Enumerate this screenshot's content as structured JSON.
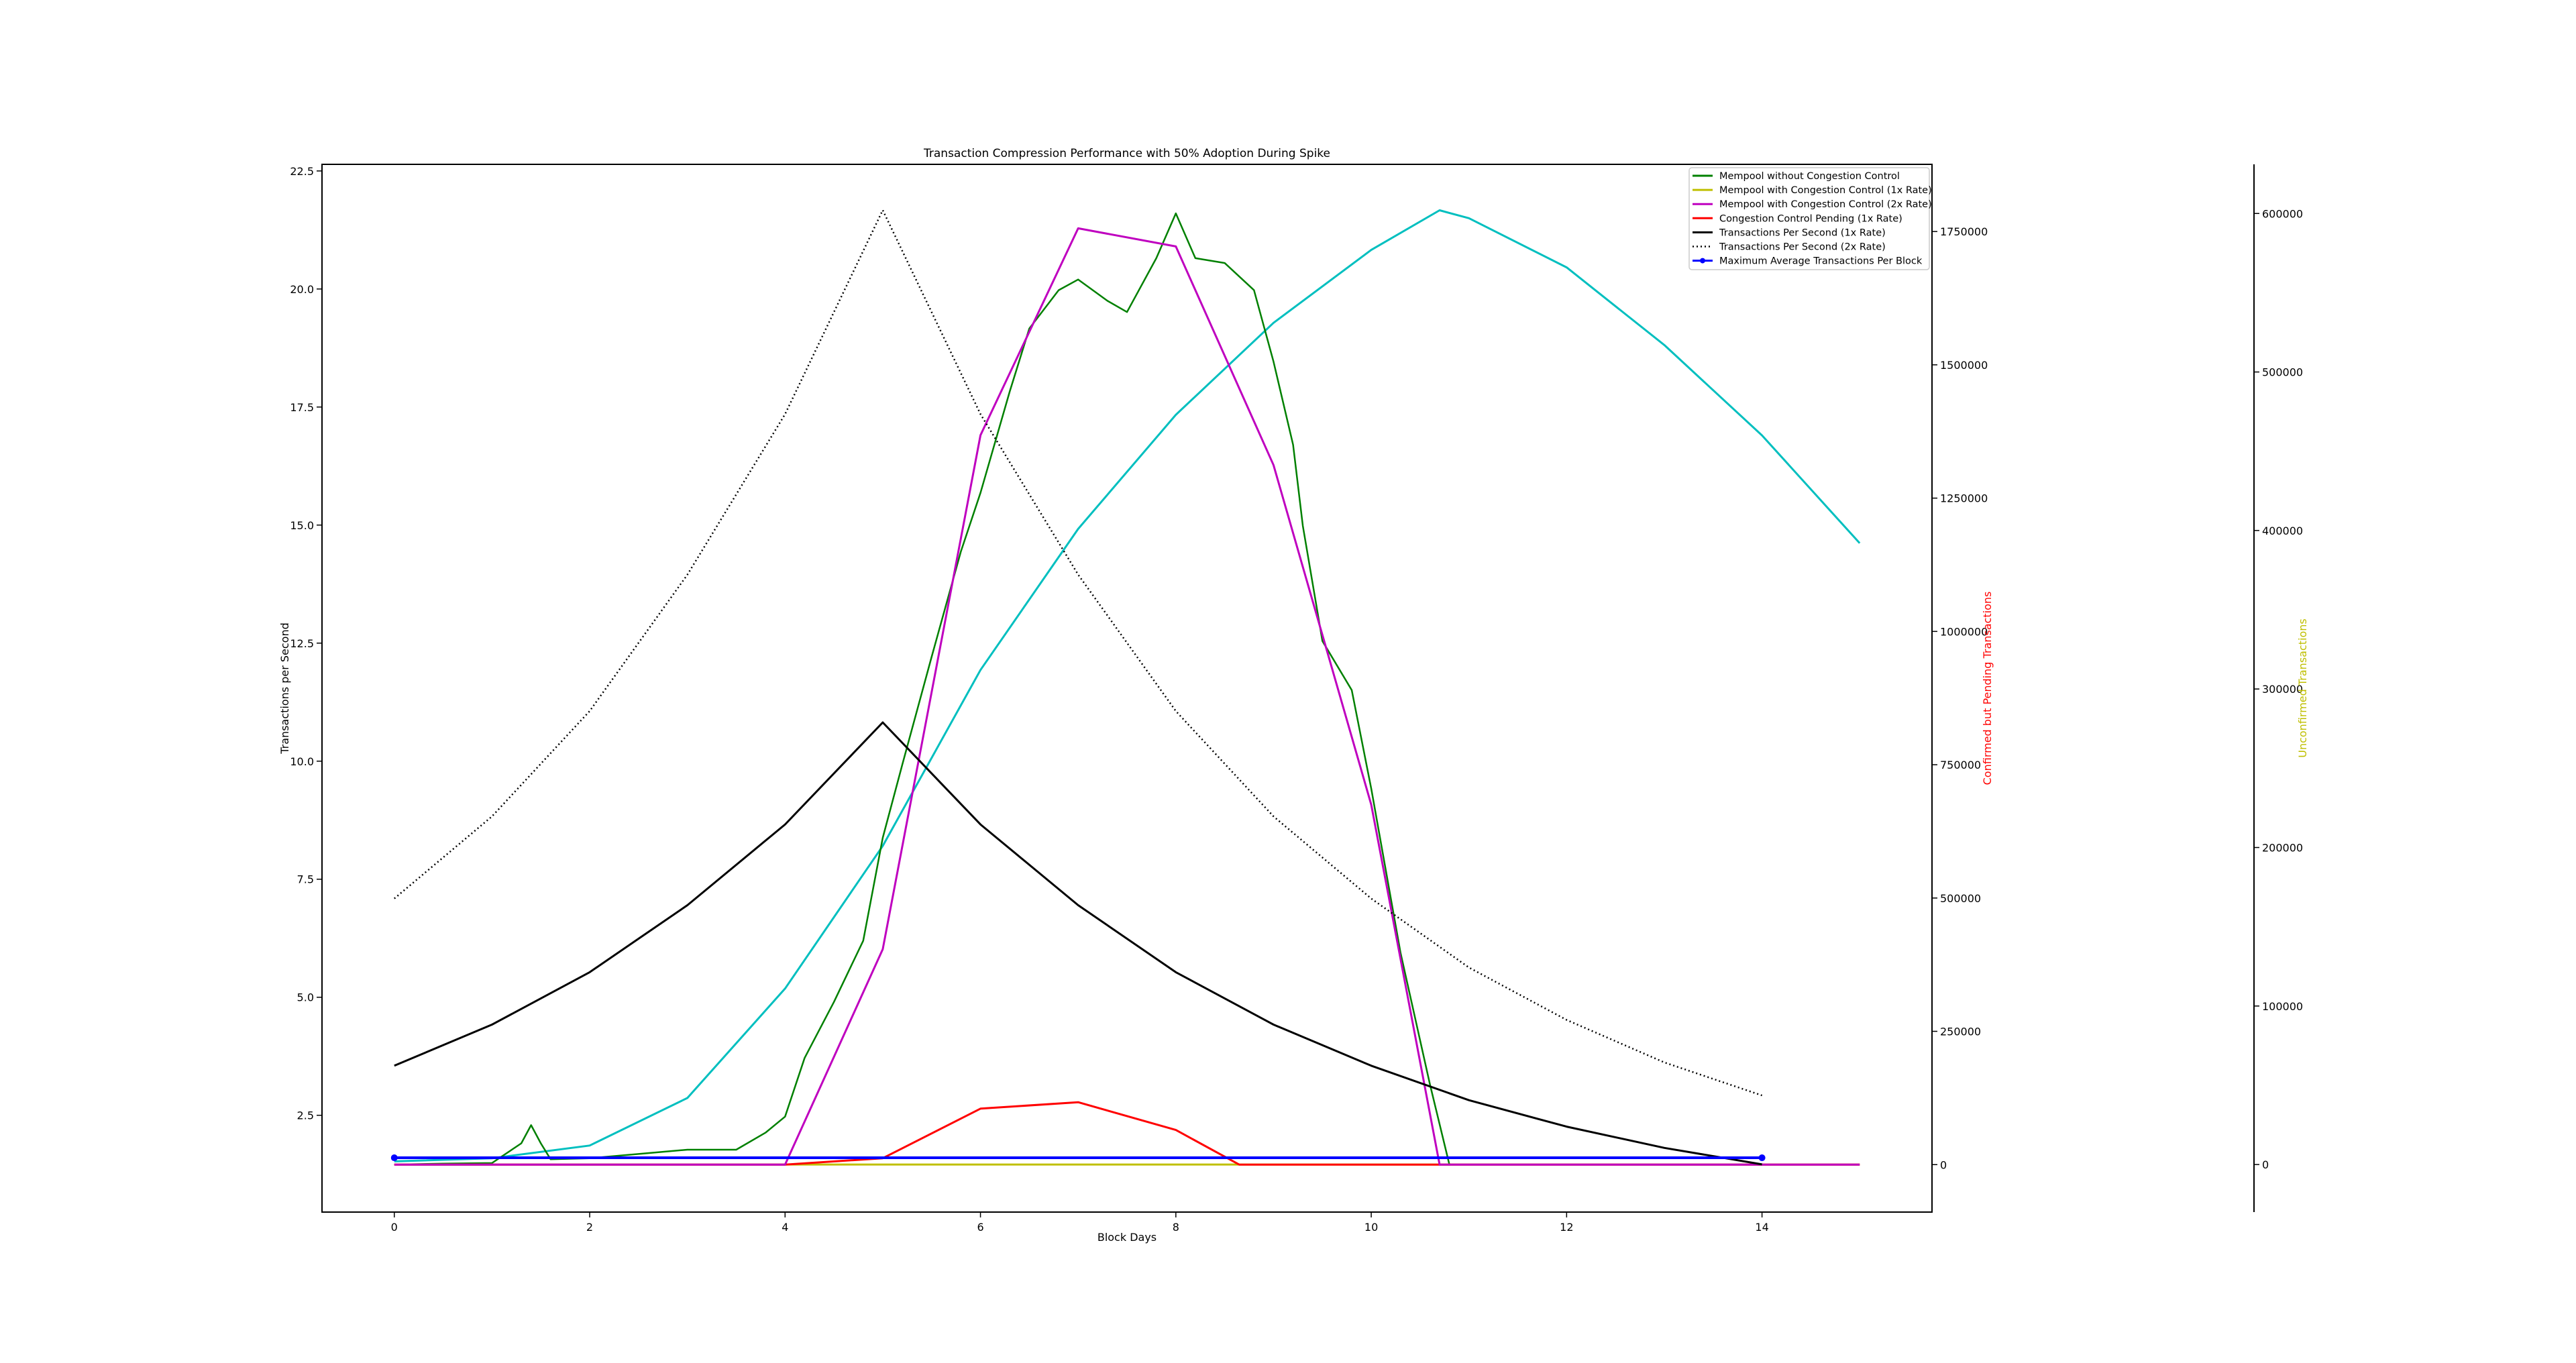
{
  "chart_data": {
    "type": "line",
    "title": "Transaction Compression Performance with 50% Adoption During Spike",
    "xlabel": "Block Days",
    "ylabel_left": "Transactions per Second",
    "ylabel_right": "Confirmed but Pending Transactions",
    "ylabel_right2": "Unconfirmed Transactions",
    "ylabel_right_color": "#ff0000",
    "ylabel_right2_color": "#bfbf00",
    "xlim": [
      -0.74,
      15.74
    ],
    "ylim_left": [
      0.45,
      22.64
    ],
    "ylim_right": [
      -89000,
      1876000
    ],
    "ylim_right2": [
      -30000,
      631000
    ],
    "xticks": [
      "0",
      "2",
      "4",
      "6",
      "8",
      "10",
      "12",
      "14"
    ],
    "yticks_left": [
      "2.5",
      "5.0",
      "7.5",
      "10.0",
      "12.5",
      "15.0",
      "17.5",
      "20.0",
      "22.5"
    ],
    "yticks_right": [
      "0",
      "250000",
      "500000",
      "750000",
      "1000000",
      "1250000",
      "1500000",
      "1750000"
    ],
    "yticks_right2": [
      "0",
      "100000",
      "200000",
      "300000",
      "400000",
      "500000",
      "600000"
    ],
    "grid": false,
    "legend_position": "top-right",
    "series": [
      {
        "name": "Mempool without Congestion Control",
        "axis": "right",
        "color": "#008000",
        "style": "solid",
        "x": [
          0,
          0.5,
          1,
          1.3,
          1.4,
          1.5,
          1.6,
          2,
          2.5,
          3,
          3.5,
          3.8,
          4,
          4.2,
          4.5,
          4.8,
          5,
          5.2,
          5.5,
          5.8,
          6,
          6.3,
          6.5,
          6.8,
          7,
          7.3,
          7.5,
          7.8,
          8,
          8.2,
          8.5,
          8.8,
          9,
          9.2,
          9.3,
          9.5,
          9.8,
          10,
          10.3,
          10.6,
          10.8,
          11,
          12
        ],
        "y": [
          0,
          2000,
          3000,
          40000,
          74000,
          40000,
          10000,
          12000,
          20000,
          28000,
          28000,
          60000,
          90000,
          200000,
          305000,
          420000,
          613000,
          750000,
          952000,
          1150000,
          1260000,
          1450000,
          1568000,
          1640000,
          1660000,
          1620000,
          1599000,
          1700000,
          1784000,
          1700000,
          1691000,
          1640000,
          1506000,
          1350000,
          1198000,
          982000,
          890000,
          705000,
          397000,
          151000,
          0,
          0,
          0
        ]
      },
      {
        "name": "Mempool with Congestion Control (1x Rate)",
        "axis": "right2",
        "color": "#bfbf00",
        "style": "solid",
        "x": [
          0,
          15
        ],
        "y": [
          0,
          0
        ]
      },
      {
        "name": "Mempool with Congestion Control (2x Rate)",
        "axis": "right",
        "color": "#bf00bf",
        "style": "solid",
        "x": [
          0,
          4,
          5,
          6,
          7,
          8,
          9,
          10,
          10.7,
          15
        ],
        "y": [
          0,
          0,
          404000,
          1368000,
          1756000,
          1722000,
          1312000,
          675000,
          0,
          0
        ]
      },
      {
        "name": "Congestion Control Pending (1x Rate)",
        "axis": "right",
        "color": "#ff0000",
        "style": "solid",
        "x": [
          0,
          4,
          5,
          6,
          7,
          8,
          8.65,
          15
        ],
        "y": [
          0,
          0,
          12000,
          105000,
          117000,
          65000,
          0,
          0
        ]
      },
      {
        "name": "Transactions Per Second (1x Rate)",
        "axis": "left",
        "color": "#000000",
        "style": "solid",
        "x": [
          0,
          1,
          2,
          3,
          4,
          5,
          6,
          7,
          8,
          9,
          10,
          11,
          12,
          13,
          14
        ],
        "y": [
          3.55,
          4.42,
          5.53,
          6.95,
          8.66,
          10.82,
          8.66,
          6.95,
          5.53,
          4.42,
          3.55,
          2.82,
          2.26,
          1.81,
          1.46
        ]
      },
      {
        "name": "Transactions Per Second (2x Rate)",
        "axis": "left",
        "color": "#000000",
        "style": "dotted",
        "x": [
          0,
          1,
          2,
          3,
          4,
          5,
          6,
          7,
          8,
          9,
          10,
          11,
          12,
          13,
          14
        ],
        "y": [
          7.09,
          8.83,
          11.06,
          13.95,
          17.35,
          21.67,
          17.35,
          13.95,
          11.06,
          8.83,
          7.09,
          5.63,
          4.52,
          3.62,
          2.92
        ]
      },
      {
        "name": "Maximum Average Transactions Per Block",
        "axis": "left",
        "color": "#0000ff",
        "style": "solid-marker",
        "x": [
          0,
          14
        ],
        "y": [
          1.6,
          1.6
        ]
      },
      {
        "axis": "right2",
        "color": "#00bfbf",
        "style": "solid",
        "in_legend": false,
        "x": [
          0,
          1,
          2,
          3,
          4,
          5,
          6,
          7,
          8,
          9,
          10,
          10.7,
          11,
          12,
          13,
          14,
          15
        ],
        "y": [
          2000,
          4000,
          12000,
          42000,
          111000,
          201000,
          312000,
          401000,
          473000,
          531000,
          577000,
          602000,
          597000,
          566000,
          517000,
          460000,
          392000
        ]
      }
    ]
  }
}
